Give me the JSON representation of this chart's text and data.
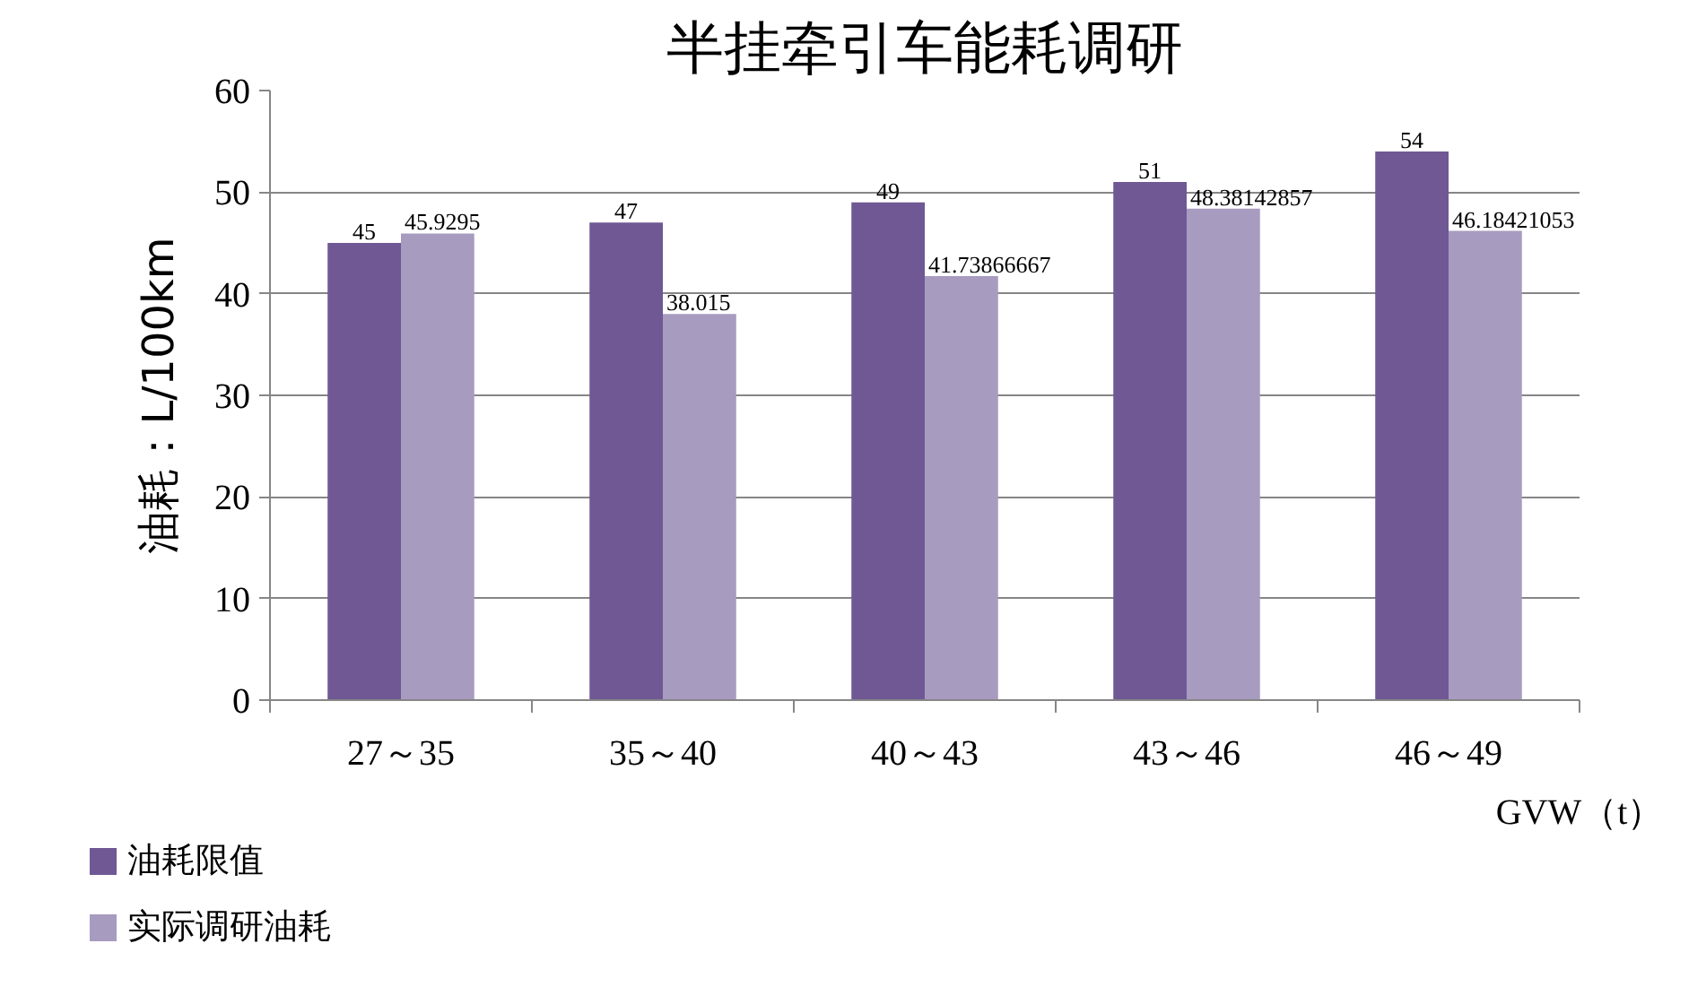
{
  "chart_data": {
    "type": "bar",
    "title": "半挂牵引车能耗调研",
    "xlabel": "GVW（t）",
    "ylabel": "油耗：L/100km",
    "categories": [
      "27～35",
      "35～40",
      "40～43",
      "43～46",
      "46～49"
    ],
    "series": [
      {
        "name": "油耗限值",
        "color": "#6f5894",
        "values": [
          45,
          47,
          49,
          51,
          54
        ]
      },
      {
        "name": "实际调研油耗",
        "color": "#a89bc0",
        "values": [
          45.9295,
          38.015,
          41.73866667,
          48.38142857,
          46.18421053
        ]
      }
    ],
    "ylim": [
      0,
      60
    ],
    "yticks": [
      0,
      10,
      20,
      30,
      40,
      50,
      60
    ],
    "grid": "y",
    "legend": "bottom left",
    "data_labels": true
  }
}
